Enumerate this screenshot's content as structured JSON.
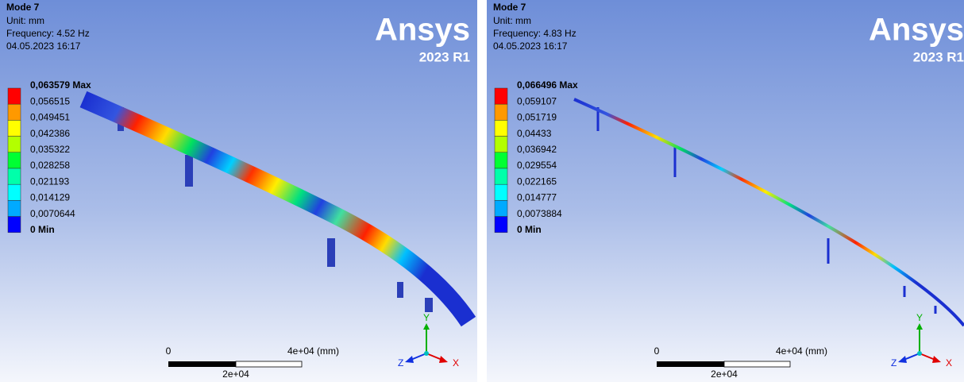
{
  "panels": [
    {
      "mode": "Mode 7",
      "unit": "Unit: mm",
      "frequency": "Frequency: 4.52 Hz",
      "date": "04.05.2023 16:17",
      "logo": "Ansys",
      "version": "2023 R1",
      "legend": [
        "0,063579 Max",
        "0,056515",
        "0,049451",
        "0,042386",
        "0,035322",
        "0,028258",
        "0,021193",
        "0,014129",
        "0,0070644",
        "0 Min"
      ],
      "scale": {
        "start": "0",
        "end": "4e+04 (mm)",
        "mid": "2e+04"
      },
      "axes": {
        "y": "Y",
        "x": "X",
        "z": "Z"
      }
    },
    {
      "mode": "Mode 7",
      "unit": "Unit: mm",
      "frequency": "Frequency: 4.83 Hz",
      "date": "04.05.2023 16:17",
      "logo": "Ansys",
      "version": "2023 R1",
      "legend": [
        "0,066496 Max",
        "0,059107",
        "0,051719",
        "0,04433",
        "0,036942",
        "0,029554",
        "0,022165",
        "0,014777",
        "0,0073884",
        "0 Min"
      ],
      "scale": {
        "start": "0",
        "end": "4e+04 (mm)",
        "mid": "2e+04"
      },
      "axes": {
        "y": "Y",
        "x": "X",
        "z": "Z"
      }
    }
  ]
}
